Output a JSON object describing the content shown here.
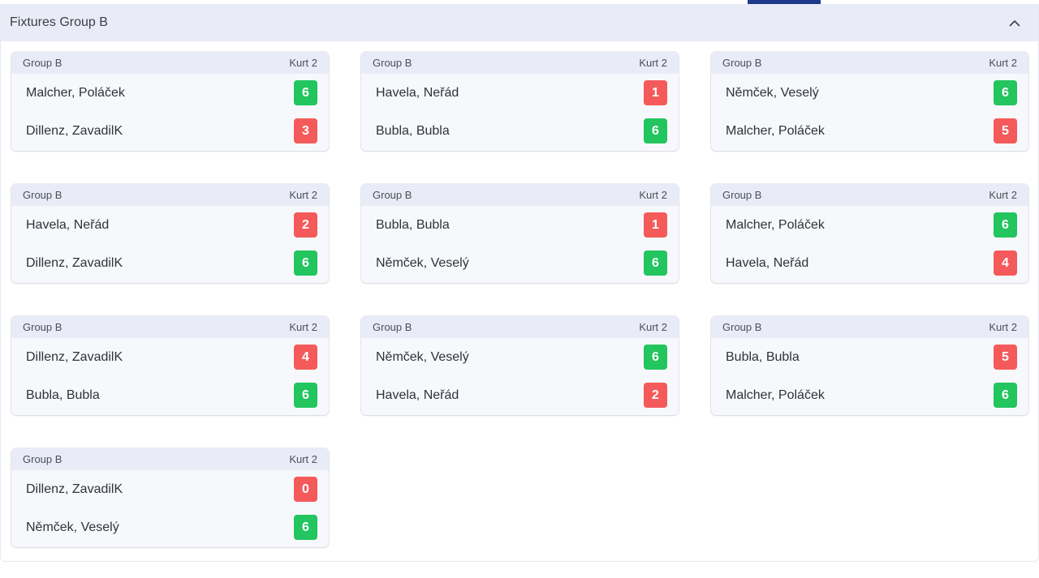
{
  "panel": {
    "title": "Fixtures Group B",
    "collapse_icon": "chevron-up-icon"
  },
  "colors": {
    "win": "#22c55e",
    "lose": "#f55a5a",
    "header_bg": "#e9ecf6",
    "accent": "#1e3a8a"
  },
  "matches": [
    {
      "group": "Group B",
      "court": "Kurt 2",
      "team1": "Malcher, Poláček",
      "score1": "6",
      "team2": "Dillenz, ZavadilK",
      "score2": "3"
    },
    {
      "group": "Group B",
      "court": "Kurt 2",
      "team1": "Havela, Neřád",
      "score1": "1",
      "team2": "Bubla, Bubla",
      "score2": "6"
    },
    {
      "group": "Group B",
      "court": "Kurt 2",
      "team1": "Němček, Veselý",
      "score1": "6",
      "team2": "Malcher, Poláček",
      "score2": "5"
    },
    {
      "group": "Group B",
      "court": "Kurt 2",
      "team1": "Havela, Neřád",
      "score1": "2",
      "team2": "Dillenz, ZavadilK",
      "score2": "6"
    },
    {
      "group": "Group B",
      "court": "Kurt 2",
      "team1": "Bubla, Bubla",
      "score1": "1",
      "team2": "Němček, Veselý",
      "score2": "6"
    },
    {
      "group": "Group B",
      "court": "Kurt 2",
      "team1": "Malcher, Poláček",
      "score1": "6",
      "team2": "Havela, Neřád",
      "score2": "4"
    },
    {
      "group": "Group B",
      "court": "Kurt 2",
      "team1": "Dillenz, ZavadilK",
      "score1": "4",
      "team2": "Bubla, Bubla",
      "score2": "6"
    },
    {
      "group": "Group B",
      "court": "Kurt 2",
      "team1": "Němček, Veselý",
      "score1": "6",
      "team2": "Havela, Neřád",
      "score2": "2"
    },
    {
      "group": "Group B",
      "court": "Kurt 2",
      "team1": "Bubla, Bubla",
      "score1": "5",
      "team2": "Malcher, Poláček",
      "score2": "6"
    },
    {
      "group": "Group B",
      "court": "Kurt 2",
      "team1": "Dillenz, ZavadilK",
      "score1": "0",
      "team2": "Němček, Veselý",
      "score2": "6"
    }
  ]
}
